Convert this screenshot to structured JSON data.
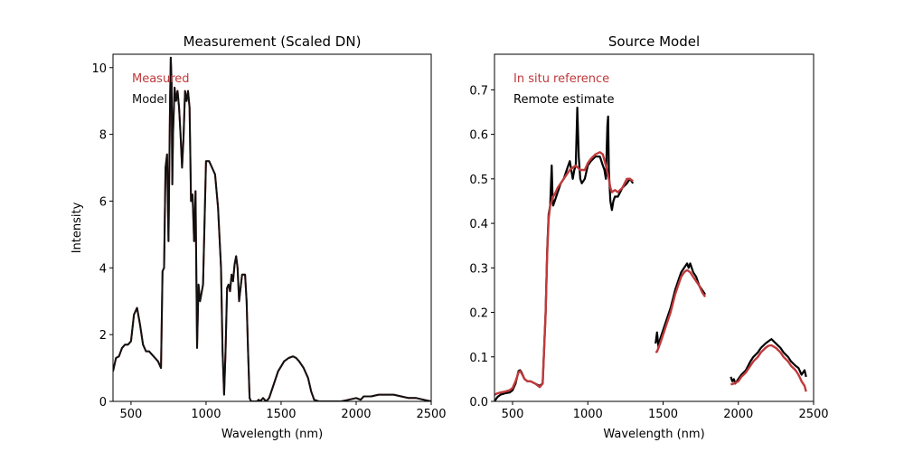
{
  "chart_data": [
    {
      "type": "line",
      "title": "Measurement (Scaled DN)",
      "xlabel": "Wavelength (nm)",
      "ylabel": "Intensity",
      "xlim": [
        380,
        2500
      ],
      "ylim": [
        0,
        10.4
      ],
      "xticks": [
        500,
        1000,
        1500,
        2000,
        2500
      ],
      "yticks": [
        0,
        2,
        4,
        6,
        8,
        10
      ],
      "xtick_labels": [
        "500",
        "1000",
        "1500",
        "2000",
        "2500"
      ],
      "ytick_labels": [
        "0",
        "2",
        "4",
        "6",
        "8",
        "10"
      ],
      "grid": false,
      "legend_position": "top-left",
      "series": [
        {
          "name": "Measured",
          "color": "#c0393b",
          "x": [
            380,
            400,
            420,
            440,
            460,
            480,
            500,
            520,
            540,
            560,
            580,
            600,
            620,
            640,
            660,
            680,
            700,
            710,
            720,
            730,
            740,
            750,
            760,
            765,
            770,
            775,
            780,
            790,
            800,
            810,
            820,
            830,
            840,
            850,
            860,
            870,
            880,
            890,
            900,
            910,
            920,
            930,
            940,
            950,
            960,
            980,
            1000,
            1020,
            1040,
            1060,
            1080,
            1100,
            1110,
            1120,
            1130,
            1140,
            1150,
            1160,
            1170,
            1180,
            1190,
            1200,
            1210,
            1220,
            1240,
            1260,
            1270,
            1280,
            1290,
            1300,
            1320,
            1340,
            1350,
            1360,
            1380,
            1400,
            1420,
            1450,
            1480,
            1500,
            1520,
            1550,
            1580,
            1600,
            1620,
            1650,
            1680,
            1700,
            1720,
            1750,
            1780,
            1800,
            1850,
            1900,
            1950,
            2000,
            2030,
            2050,
            2100,
            2150,
            2200,
            2250,
            2300,
            2350,
            2400,
            2450,
            2500
          ],
          "y": [
            0.9,
            1.3,
            1.35,
            1.6,
            1.7,
            1.7,
            1.8,
            2.6,
            2.8,
            2.3,
            1.7,
            1.5,
            1.5,
            1.4,
            1.3,
            1.2,
            1.0,
            3.9,
            4.0,
            7.0,
            7.4,
            4.8,
            9.0,
            10.3,
            9.6,
            6.5,
            8.0,
            9.4,
            9.0,
            9.3,
            8.8,
            8.0,
            7.0,
            7.9,
            9.3,
            9.0,
            9.3,
            8.8,
            6.0,
            6.2,
            4.8,
            6.3,
            1.6,
            3.5,
            3.0,
            3.5,
            7.2,
            7.2,
            7.0,
            6.8,
            5.8,
            4.0,
            1.5,
            0.2,
            1.5,
            3.4,
            3.5,
            3.3,
            3.8,
            3.6,
            4.1,
            4.35,
            4.0,
            3.0,
            3.8,
            3.8,
            3.0,
            1.5,
            0.1,
            0.0,
            0.0,
            0.0,
            0.05,
            0.0,
            0.1,
            0.0,
            0.1,
            0.5,
            0.9,
            1.05,
            1.2,
            1.3,
            1.35,
            1.3,
            1.2,
            1.0,
            0.7,
            0.3,
            0.05,
            0.0,
            0.0,
            0.0,
            0.0,
            0.0,
            0.05,
            0.1,
            0.05,
            0.15,
            0.15,
            0.2,
            0.2,
            0.2,
            0.15,
            0.1,
            0.1,
            0.05,
            0.0
          ]
        },
        {
          "name": "Model",
          "color": "#111111",
          "x": [
            380,
            400,
            420,
            440,
            460,
            480,
            500,
            520,
            540,
            560,
            580,
            600,
            620,
            640,
            660,
            680,
            700,
            710,
            720,
            730,
            740,
            750,
            760,
            765,
            770,
            775,
            780,
            790,
            800,
            810,
            820,
            830,
            840,
            850,
            860,
            870,
            880,
            890,
            900,
            910,
            920,
            930,
            940,
            950,
            960,
            980,
            1000,
            1020,
            1040,
            1060,
            1080,
            1100,
            1110,
            1120,
            1130,
            1140,
            1150,
            1160,
            1170,
            1180,
            1190,
            1200,
            1210,
            1220,
            1240,
            1260,
            1270,
            1280,
            1290,
            1300,
            1320,
            1340,
            1350,
            1360,
            1380,
            1400,
            1420,
            1450,
            1480,
            1500,
            1520,
            1550,
            1580,
            1600,
            1620,
            1650,
            1680,
            1700,
            1720,
            1750,
            1780,
            1800,
            1850,
            1900,
            1950,
            2000,
            2030,
            2050,
            2100,
            2150,
            2200,
            2250,
            2300,
            2350,
            2400,
            2450,
            2500
          ],
          "y": [
            0.9,
            1.3,
            1.35,
            1.6,
            1.7,
            1.7,
            1.8,
            2.6,
            2.8,
            2.3,
            1.7,
            1.5,
            1.5,
            1.4,
            1.3,
            1.2,
            1.0,
            3.9,
            4.0,
            7.0,
            7.4,
            4.8,
            9.0,
            10.3,
            9.6,
            6.5,
            8.0,
            9.4,
            9.0,
            9.3,
            8.8,
            8.0,
            7.0,
            7.9,
            9.3,
            9.0,
            9.3,
            8.8,
            6.0,
            6.2,
            4.8,
            6.3,
            1.6,
            3.5,
            3.0,
            3.5,
            7.2,
            7.2,
            7.0,
            6.8,
            5.8,
            4.0,
            1.5,
            0.2,
            1.5,
            3.4,
            3.5,
            3.3,
            3.8,
            3.6,
            4.1,
            4.35,
            4.0,
            3.0,
            3.8,
            3.8,
            3.0,
            1.5,
            0.1,
            0.0,
            0.0,
            0.0,
            0.05,
            0.0,
            0.1,
            0.0,
            0.1,
            0.5,
            0.9,
            1.05,
            1.2,
            1.3,
            1.35,
            1.3,
            1.2,
            1.0,
            0.7,
            0.3,
            0.05,
            0.0,
            0.0,
            0.0,
            0.0,
            0.0,
            0.05,
            0.1,
            0.05,
            0.15,
            0.15,
            0.2,
            0.2,
            0.2,
            0.15,
            0.1,
            0.1,
            0.05,
            0.0
          ]
        }
      ]
    },
    {
      "type": "line",
      "title": "Source Model",
      "xlabel": "Wavelength (nm)",
      "ylabel": "",
      "xlim": [
        380,
        2500
      ],
      "ylim": [
        0,
        0.78
      ],
      "xticks": [
        500,
        1000,
        1500,
        2000,
        2500
      ],
      "yticks": [
        0.0,
        0.1,
        0.2,
        0.3,
        0.4,
        0.5,
        0.6,
        0.7
      ],
      "xtick_labels": [
        "500",
        "1000",
        "1500",
        "2000",
        "2500"
      ],
      "ytick_labels": [
        "0.0",
        "0.1",
        "0.2",
        "0.3",
        "0.4",
        "0.5",
        "0.6",
        "0.7"
      ],
      "grid": false,
      "legend_position": "top-left",
      "series": [
        {
          "name": "Remote estimate",
          "color": "#000000",
          "segments": [
            {
              "x": [
                380,
                400,
                420,
                450,
                480,
                500,
                520,
                540,
                550,
                560,
                580,
                600,
                620,
                650,
                680,
                700,
                720,
                730,
                740,
                750,
                760,
                765,
                770,
                780,
                800,
                820,
                840,
                860,
                880,
                900,
                910,
                920,
                930,
                940,
                950,
                960,
                980,
                1000,
                1020,
                1050,
                1080,
                1100,
                1110,
                1120,
                1130,
                1135,
                1140,
                1150,
                1160,
                1170,
                1180,
                1200,
                1230,
                1260,
                1280,
                1300
              ],
              "y": [
                0.0,
                0.01,
                0.015,
                0.018,
                0.02,
                0.025,
                0.04,
                0.068,
                0.07,
                0.065,
                0.05,
                0.045,
                0.045,
                0.04,
                0.035,
                0.04,
                0.2,
                0.34,
                0.42,
                0.44,
                0.53,
                0.47,
                0.44,
                0.45,
                0.47,
                0.49,
                0.5,
                0.52,
                0.54,
                0.5,
                0.52,
                0.53,
                0.66,
                0.55,
                0.5,
                0.49,
                0.5,
                0.53,
                0.54,
                0.55,
                0.55,
                0.53,
                0.52,
                0.5,
                0.62,
                0.64,
                0.52,
                0.45,
                0.43,
                0.45,
                0.46,
                0.46,
                0.48,
                0.49,
                0.5,
                0.49
              ]
            },
            {
              "x": [
                1450,
                1460,
                1470,
                1480,
                1500,
                1520,
                1550,
                1580,
                1600,
                1620,
                1640,
                1650,
                1660,
                1670,
                1680,
                1700,
                1720,
                1740,
                1760,
                1780
              ],
              "y": [
                0.13,
                0.155,
                0.12,
                0.14,
                0.16,
                0.18,
                0.21,
                0.25,
                0.27,
                0.29,
                0.3,
                0.305,
                0.31,
                0.3,
                0.31,
                0.29,
                0.28,
                0.26,
                0.25,
                0.24
              ]
            },
            {
              "x": [
                1950,
                1960,
                1970,
                1980,
                2000,
                2020,
                2050,
                2080,
                2100,
                2130,
                2150,
                2180,
                2200,
                2220,
                2250,
                2280,
                2300,
                2330,
                2350,
                2380,
                2400,
                2420,
                2440,
                2450
              ],
              "y": [
                0.055,
                0.045,
                0.05,
                0.04,
                0.05,
                0.06,
                0.07,
                0.09,
                0.1,
                0.11,
                0.12,
                0.13,
                0.135,
                0.14,
                0.13,
                0.12,
                0.11,
                0.1,
                0.09,
                0.08,
                0.075,
                0.06,
                0.07,
                0.055
              ]
            }
          ]
        },
        {
          "name": "In situ reference",
          "color": "#c0393b",
          "segments": [
            {
              "x": [
                380,
                400,
                420,
                450,
                480,
                500,
                520,
                540,
                550,
                560,
                580,
                600,
                620,
                650,
                680,
                700,
                720,
                730,
                740,
                750,
                760,
                770,
                780,
                800,
                820,
                840,
                860,
                880,
                900,
                920,
                950,
                980,
                1000,
                1020,
                1050,
                1080,
                1100,
                1120,
                1140,
                1150,
                1160,
                1180,
                1200,
                1230,
                1260,
                1280,
                1300
              ],
              "y": [
                0.015,
                0.018,
                0.02,
                0.022,
                0.025,
                0.03,
                0.045,
                0.065,
                0.068,
                0.063,
                0.05,
                0.045,
                0.045,
                0.04,
                0.032,
                0.04,
                0.2,
                0.33,
                0.41,
                0.44,
                0.45,
                0.46,
                0.465,
                0.48,
                0.49,
                0.5,
                0.51,
                0.52,
                0.525,
                0.53,
                0.52,
                0.52,
                0.535,
                0.545,
                0.555,
                0.56,
                0.555,
                0.53,
                0.5,
                0.48,
                0.47,
                0.475,
                0.47,
                0.48,
                0.5,
                0.5,
                0.495
              ]
            },
            {
              "x": [
                1450,
                1460,
                1480,
                1500,
                1520,
                1550,
                1580,
                1600,
                1620,
                1640,
                1650,
                1660,
                1680,
                1700,
                1720,
                1740,
                1760,
                1780
              ],
              "y": [
                0.11,
                0.112,
                0.13,
                0.15,
                0.17,
                0.2,
                0.24,
                0.26,
                0.28,
                0.29,
                0.293,
                0.295,
                0.29,
                0.28,
                0.27,
                0.26,
                0.245,
                0.235
              ]
            },
            {
              "x": [
                1950,
                1970,
                2000,
                2020,
                2050,
                2080,
                2100,
                2130,
                2150,
                2180,
                2200,
                2220,
                2250,
                2280,
                2300,
                2330,
                2350,
                2380,
                2400,
                2420,
                2440,
                2450
              ],
              "y": [
                0.038,
                0.04,
                0.045,
                0.055,
                0.065,
                0.08,
                0.09,
                0.1,
                0.11,
                0.12,
                0.125,
                0.126,
                0.12,
                0.11,
                0.1,
                0.09,
                0.08,
                0.07,
                0.06,
                0.045,
                0.035,
                0.022
              ]
            }
          ]
        }
      ]
    }
  ]
}
